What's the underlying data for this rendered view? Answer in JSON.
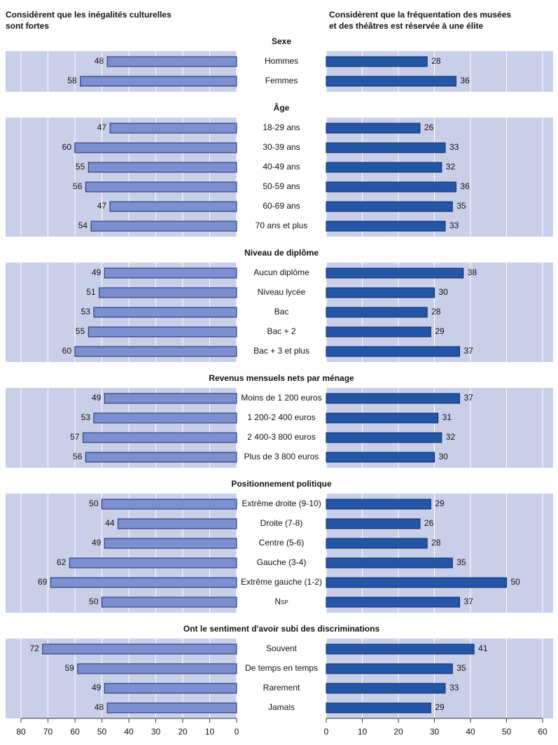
{
  "chart_data": {
    "type": "bar",
    "left_title": [
      "Considèrent que les inégalités culturelles",
      "sont fortes"
    ],
    "right_title": [
      "Considèrent que la fréquentation des musées",
      "et des théâtres est réservée à une élite"
    ],
    "left_color": "#7b8fd1",
    "right_color": "#2456a8",
    "left_xlim": [
      0,
      80
    ],
    "left_xticks": [
      80,
      70,
      60,
      50,
      40,
      30,
      20,
      10,
      0
    ],
    "right_xlim": [
      0,
      60
    ],
    "right_xticks": [
      0,
      10,
      20,
      30,
      40,
      50,
      60
    ],
    "groups": [
      {
        "title": "Sexe",
        "categories": [
          "Hommes",
          "Femmes"
        ],
        "left": [
          48,
          58
        ],
        "right": [
          28,
          36
        ]
      },
      {
        "title": "Âge",
        "categories": [
          "18-29 ans",
          "30-39 ans",
          "40-49 ans",
          "50-59 ans",
          "60-69 ans",
          "70 ans et plus"
        ],
        "left": [
          47,
          60,
          55,
          56,
          47,
          54
        ],
        "right": [
          26,
          33,
          32,
          36,
          35,
          33
        ]
      },
      {
        "title": "Niveau de diplôme",
        "categories": [
          "Aucun diplôme",
          "Niveau lycée",
          "Bac",
          "Bac + 2",
          "Bac + 3 et plus"
        ],
        "left": [
          49,
          51,
          53,
          55,
          60
        ],
        "right": [
          38,
          30,
          28,
          29,
          37
        ]
      },
      {
        "title": "Revenus mensuels nets par ménage",
        "categories": [
          "Moins de 1 200 euros",
          "1 200-2 400 euros",
          "2 400-3 800 euros",
          "Plus de 3 800 euros"
        ],
        "left": [
          49,
          53,
          57,
          56
        ],
        "right": [
          37,
          31,
          32,
          30
        ]
      },
      {
        "title": "Positionnement politique",
        "categories": [
          "Extrême droite (9-10)",
          "Droite (7-8)",
          "Centre (5-6)",
          "Gauche (3-4)",
          "Extrême gauche (1-2)",
          "Nsp"
        ],
        "left": [
          50,
          44,
          49,
          62,
          69,
          50
        ],
        "right": [
          29,
          26,
          28,
          35,
          50,
          37
        ]
      },
      {
        "title": "Ont le sentiment d'avoir subi des discriminations",
        "categories": [
          "Souvent",
          "De temps en temps",
          "Rarement",
          "Jamais"
        ],
        "left": [
          72,
          59,
          49,
          48
        ],
        "right": [
          41,
          35,
          33,
          29
        ]
      }
    ]
  }
}
